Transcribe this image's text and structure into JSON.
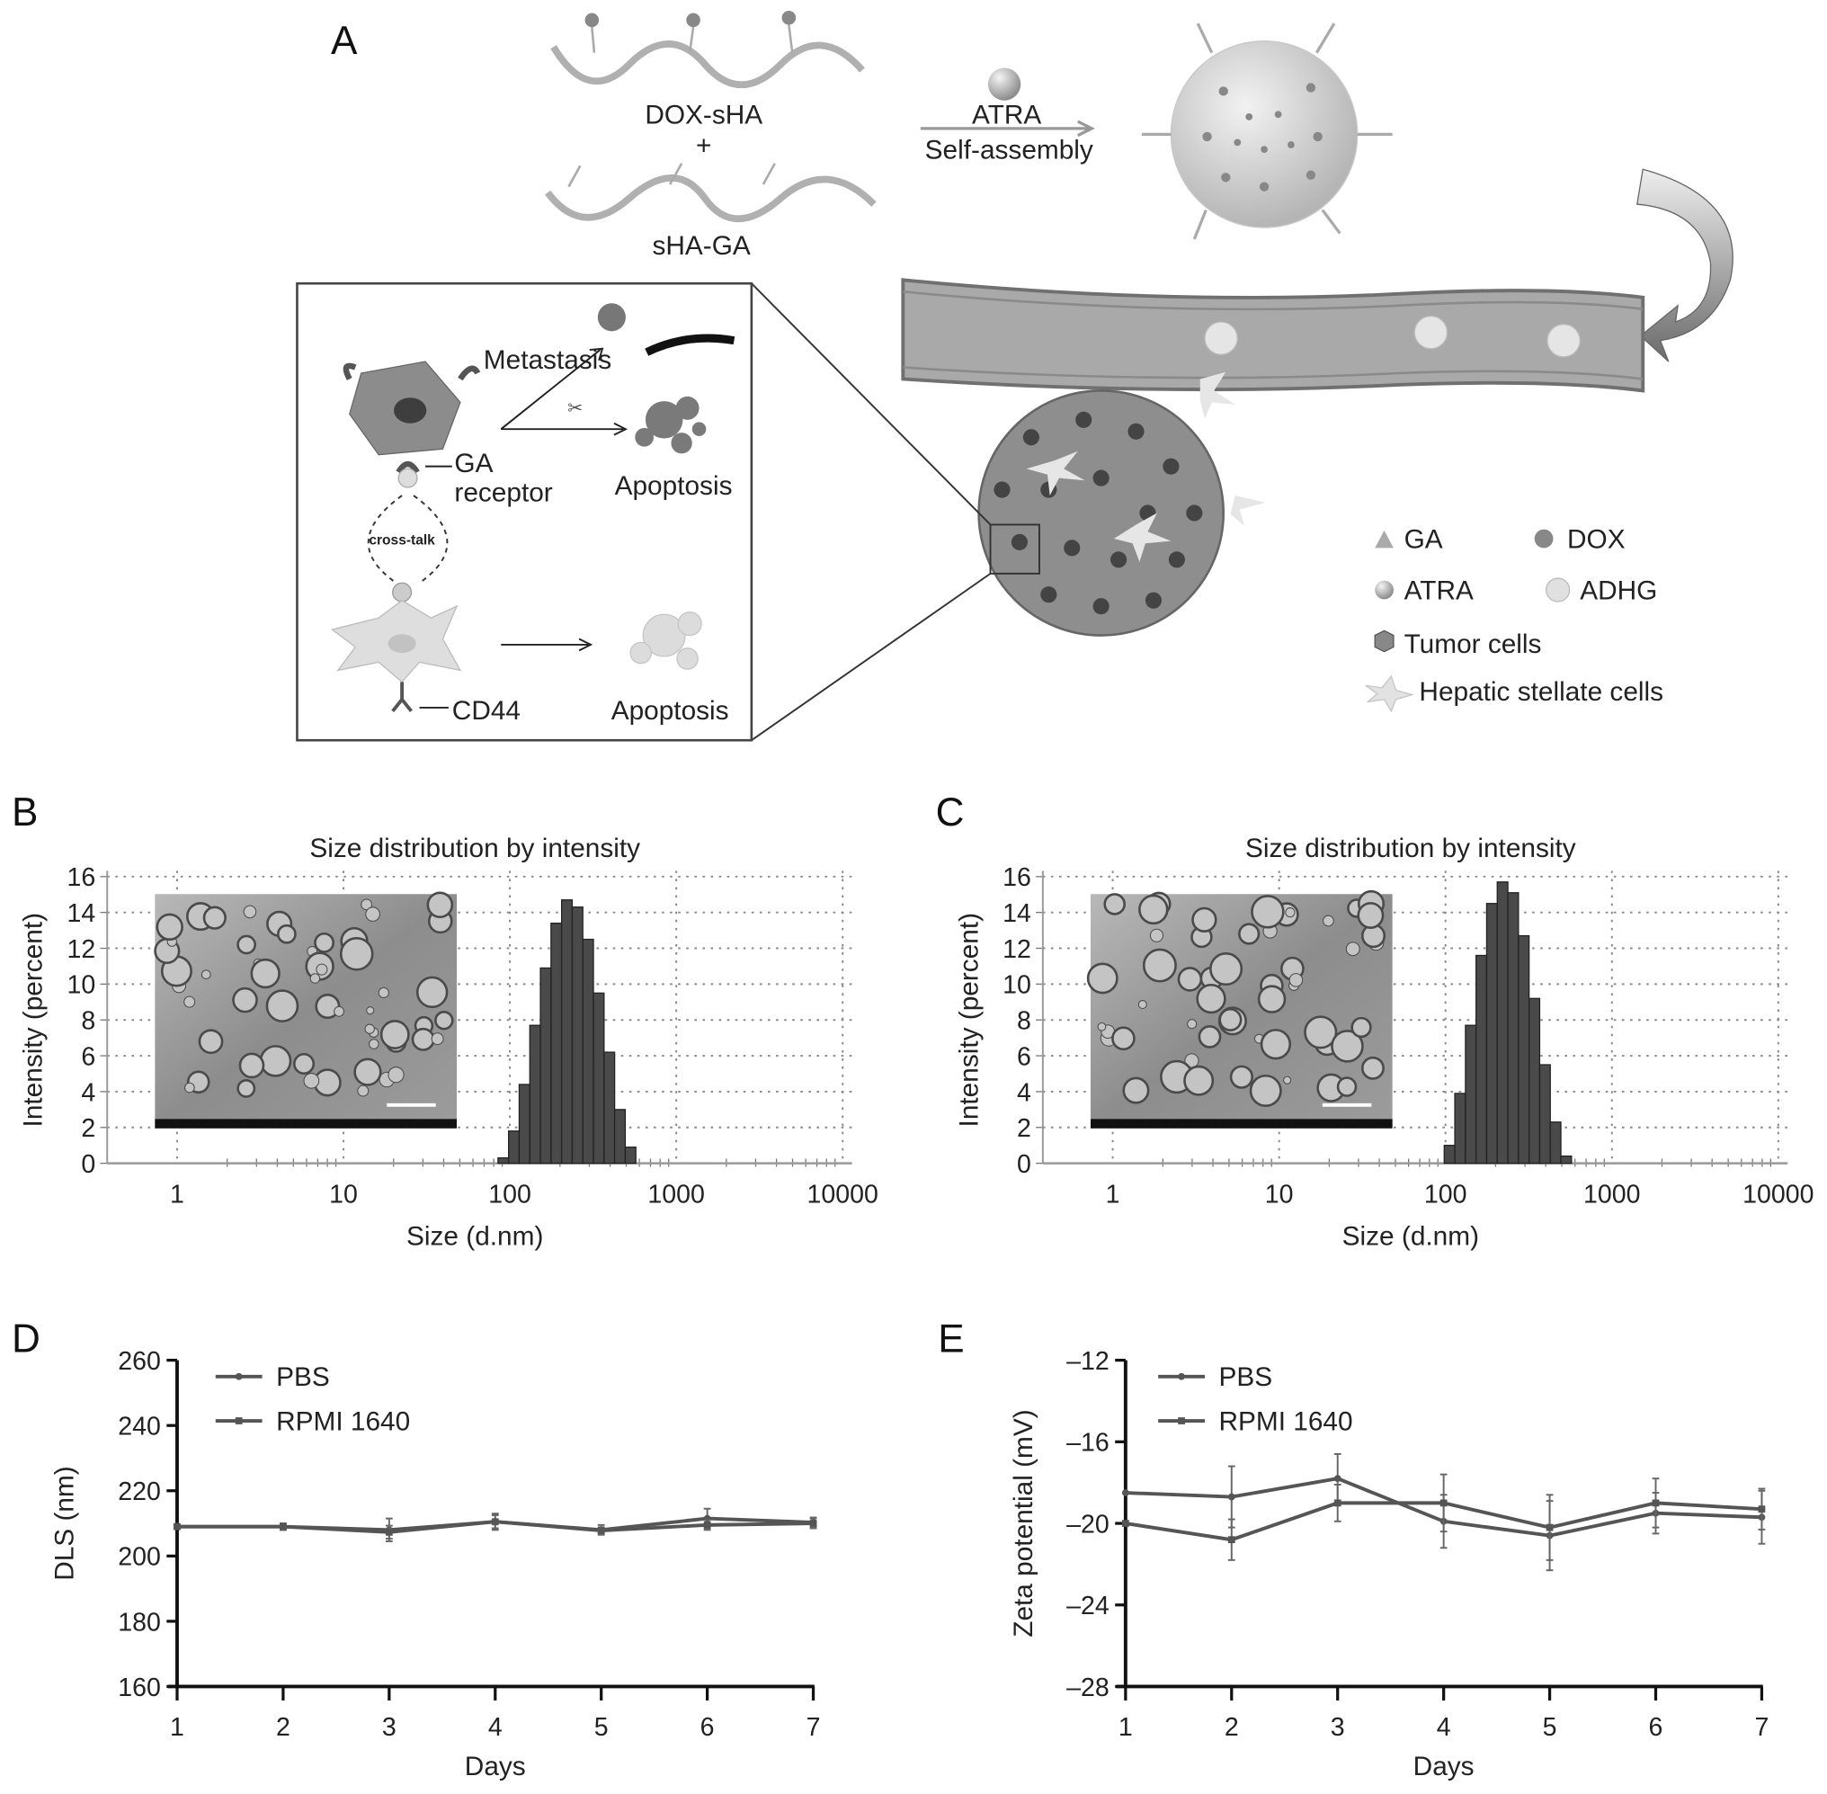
{
  "panels": {
    "a": "A",
    "b": "B",
    "c": "C",
    "d": "D",
    "e": "E"
  },
  "schematic": {
    "dox_sha": "DOX-sHA",
    "plus": "+",
    "sha_ga": "sHA-GA",
    "atra": "ATRA",
    "self_assembly": "Self-assembly",
    "metastasis": "Metastasis",
    "ga": "GA",
    "receptor": "receptor",
    "apoptosis_tumor": "Apoptosis",
    "apoptosis_hsc": "Apoptosis",
    "cross_talk": "cross-talk",
    "cd44": "CD44",
    "legend": {
      "ga": "GA",
      "dox": "DOX",
      "atra": "ATRA",
      "adhg": "ADHG",
      "tumor": "Tumor cells",
      "hsc": "Hepatic stellate cells"
    }
  },
  "chart_data": [
    {
      "id": "b",
      "type": "bar",
      "title": "Size distribution by intensity",
      "xlabel": "Size (d.nm)",
      "ylabel": "Intensity (percent)",
      "xscale": "log",
      "xlim": [
        0.4,
        10000
      ],
      "ylim": [
        0,
        16
      ],
      "xticks": [
        "1",
        "10",
        "100",
        "1000",
        "10000"
      ],
      "yticks": [
        "0",
        "2",
        "4",
        "6",
        "8",
        "10",
        "12",
        "14",
        "16"
      ],
      "grid": true,
      "inset": "TEM micrograph with scale bar",
      "x": [
        91.28,
        105.7,
        122.4,
        141.8,
        164.2,
        190.1,
        220.2,
        255.0,
        295.3,
        342.0,
        396.1,
        458.7,
        531.2
      ],
      "values": [
        0.3,
        1.8,
        4.4,
        7.7,
        10.9,
        13.4,
        14.7,
        14.3,
        12.5,
        9.5,
        6.2,
        3.0,
        0.9
      ]
    },
    {
      "id": "c",
      "type": "bar",
      "title": "Size distribution by intensity",
      "xlabel": "Size (d.nm)",
      "ylabel": "Intensity (percent)",
      "xscale": "log",
      "xlim": [
        0.4,
        10000
      ],
      "ylim": [
        0,
        16
      ],
      "xticks": [
        "1",
        "10",
        "100",
        "1000",
        "10000"
      ],
      "yticks": [
        "0",
        "2",
        "4",
        "6",
        "8",
        "10",
        "12",
        "14",
        "16"
      ],
      "grid": true,
      "inset": "TEM micrograph with scale bar",
      "x": [
        105.7,
        122.4,
        141.8,
        164.2,
        190.1,
        220.2,
        255.0,
        295.3,
        342.0,
        396.1,
        458.7,
        531.2
      ],
      "values": [
        1.0,
        3.9,
        7.7,
        11.6,
        14.5,
        15.7,
        15.1,
        12.7,
        9.2,
        5.5,
        2.3,
        0.4
      ]
    },
    {
      "id": "d",
      "type": "line",
      "xlabel": "Days",
      "ylabel": "DLS (nm)",
      "ylim": [
        160,
        260
      ],
      "x": [
        1,
        2,
        3,
        4,
        5,
        6,
        7
      ],
      "yticks": [
        "160",
        "180",
        "200",
        "220",
        "240",
        "260"
      ],
      "legend": "top-left",
      "series": [
        {
          "name": "PBS",
          "values": [
            209,
            209,
            208,
            210.5,
            208,
            211.5,
            210.3
          ],
          "error": [
            0.5,
            1,
            3.5,
            2.5,
            1.5,
            3,
            1.5
          ]
        },
        {
          "name": "RPMI 1640",
          "values": [
            209,
            209,
            207.3,
            210.5,
            207.8,
            209.5,
            210
          ],
          "error": [
            0.5,
            1,
            2,
            2,
            1,
            1.5,
            1.5
          ]
        }
      ]
    },
    {
      "id": "e",
      "type": "line",
      "xlabel": "Days",
      "ylabel": "Zeta potential (mV)",
      "ylim": [
        -28,
        -12
      ],
      "x": [
        1,
        2,
        3,
        4,
        5,
        6,
        7
      ],
      "yticks": [
        "–28",
        "–24",
        "–20",
        "–16",
        "–12"
      ],
      "legend": "top-left",
      "series": [
        {
          "name": "PBS",
          "values": [
            -18.5,
            -18.7,
            -17.8,
            -19.9,
            -20.6,
            -19.5,
            -19.7
          ],
          "error": [
            0,
            1.5,
            1.2,
            1.3,
            1.7,
            1.0,
            1.3
          ]
        },
        {
          "name": "RPMI 1640",
          "values": [
            -20.0,
            -20.8,
            -19.0,
            -19.0,
            -20.2,
            -19.0,
            -19.3
          ],
          "error": [
            0,
            1.0,
            0.9,
            1.4,
            1.6,
            1.2,
            1.0
          ]
        }
      ]
    }
  ],
  "colors": {
    "bar": "#4a4a4a",
    "line": "#555555",
    "vessel": "#a8a8a8",
    "tumor": "#8a8a8a"
  }
}
